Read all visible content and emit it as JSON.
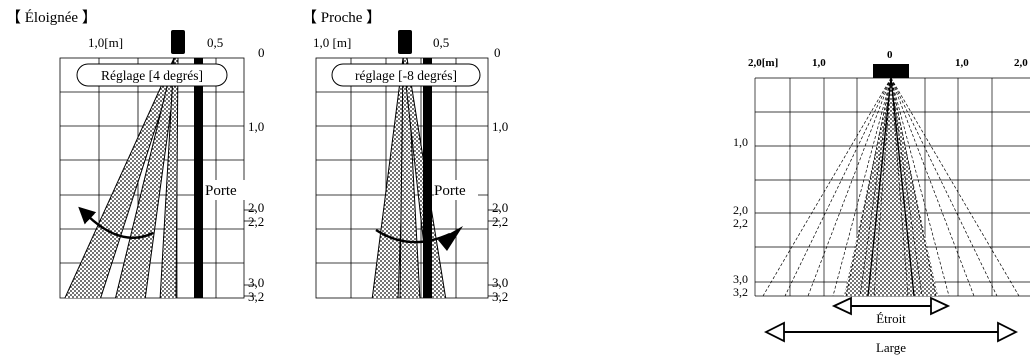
{
  "left_panel": {
    "title": "【 Éloignée 】",
    "top_left_label": "1,0[m]",
    "top_right_label": "0,5",
    "adjust_label": "Réglage [4 degrés]",
    "door_label": "Porte"
  },
  "middle_panel": {
    "title": "【 Proche 】",
    "top_left_label": "1,0 [m]",
    "top_right_label": "0,5",
    "adjust_label": "réglage [-8 degrés]",
    "door_label": "Porte"
  },
  "depth_scale": [
    "0",
    "1,0",
    "2,0",
    "2,2",
    "3,0",
    "3,2"
  ],
  "right_panel": {
    "top_labels": [
      "2,0[m]",
      "1,0",
      "0",
      "1,0",
      "2,0"
    ],
    "left_labels": [
      "1,0",
      "2,0",
      "2,2",
      "3,0",
      "3,2"
    ],
    "narrow_label": "Étroit",
    "wide_label": "Large"
  }
}
